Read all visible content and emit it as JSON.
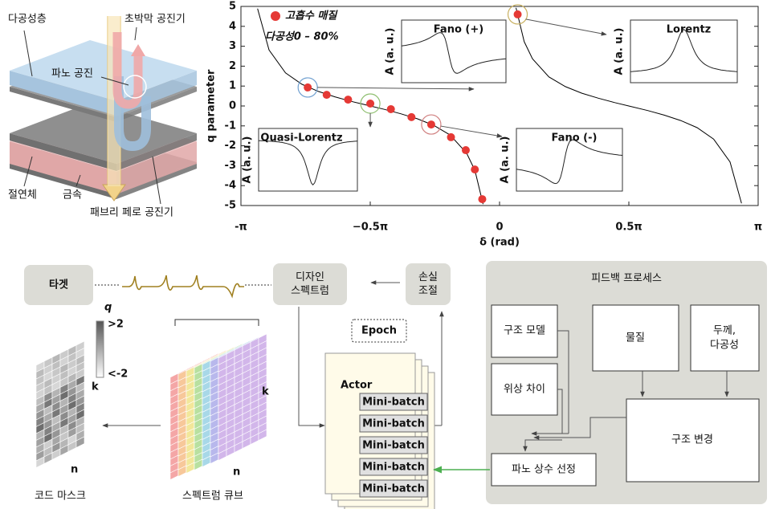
{
  "chart_data": {
    "type": "line",
    "xlabel": "δ (rad)",
    "ylabel": "q parameter",
    "xlim": [
      -3.1416,
      3.1416
    ],
    "ylim": [
      -5,
      5
    ],
    "xticks": [
      {
        "value": -3.1416,
        "label": "-π"
      },
      {
        "value": -1.5708,
        "label": "−0.5π"
      },
      0,
      {
        "value": 1.5708,
        "label": "0.5π"
      },
      {
        "value": 3.1416,
        "label": "π"
      }
    ],
    "yticks": [
      -5,
      -4,
      -3,
      -2,
      -1,
      0,
      1,
      2,
      3,
      4,
      5
    ],
    "series": [
      {
        "color": "#000000",
        "x": [
          -2.94,
          -2.8,
          -2.6,
          -2.4,
          -2.2,
          -2.0,
          -1.8,
          -1.57,
          -1.4,
          -1.2,
          -1.0,
          -0.8,
          -0.6,
          -0.4,
          -0.3,
          -0.2,
          null,
          0.2,
          0.3,
          0.4,
          0.6,
          0.8,
          1.0,
          1.2,
          1.4,
          1.57,
          1.8,
          2.0,
          2.2,
          2.4,
          2.6,
          2.8,
          2.94
        ],
        "values": [
          4.89,
          2.81,
          1.66,
          1.09,
          0.73,
          0.46,
          0.23,
          0.0,
          -0.17,
          -0.39,
          -0.64,
          -0.97,
          -1.46,
          -2.37,
          -3.23,
          -4.93,
          null,
          4.93,
          3.23,
          2.37,
          1.46,
          0.97,
          0.64,
          0.39,
          0.17,
          0.0,
          -0.23,
          -0.46,
          -0.73,
          -1.09,
          -1.66,
          -2.81,
          -4.89
        ]
      },
      {
        "name": "고흡수 매질",
        "type": "scatter",
        "color": "#e53935",
        "x": [
          -2.33,
          -2.1,
          -1.84,
          -1.57,
          -1.32,
          -1.07,
          -0.83,
          -0.59,
          -0.41,
          -0.3,
          -0.21,
          0.22
        ],
        "values": [
          0.93,
          0.56,
          0.32,
          0.12,
          -0.16,
          -0.56,
          -0.93,
          -1.57,
          -2.22,
          -3.19,
          -4.68,
          4.6
        ]
      }
    ],
    "annotations": [
      "다공성0 – 80%"
    ],
    "insets": [
      {
        "title": "Fano (+)",
        "ylabel": "A (a. u.)",
        "color": "#2e75b6"
      },
      {
        "title": "Lorentz",
        "ylabel": "A (a. u.)",
        "color": "#a08a1c"
      },
      {
        "title": "Quasi-Lorentz",
        "ylabel": "A (a. u.)",
        "color": "#4a7a2c"
      },
      {
        "title": "Fano (-)",
        "ylabel": "A (a. u.)",
        "color": "#d43a3a"
      }
    ]
  },
  "diagram": {
    "illustration": {
      "porous_layer": "다공성층",
      "fano_resonance": "파노 공진",
      "thin_film_resonator": "초박막 공진기",
      "insulator": "절연체",
      "metal": "금속",
      "fabry_perot_resonator": "패브리 페로 공진기"
    },
    "workflow": {
      "target": "타겟",
      "design_spectrum": [
        "디자인",
        "스펙트럼"
      ],
      "loss_control": [
        "손실",
        "조절"
      ],
      "epoch": "Epoch",
      "actor": "Actor",
      "mini_batches": [
        "Mini-batch",
        "Mini-batch",
        "Mini-batch",
        "Mini-batch",
        "Mini-batch"
      ],
      "feedback_title": "피드백 프로세스",
      "structure_model": "구조 모델",
      "material": "물질",
      "thickness_porosity": [
        "두께,",
        "다공성"
      ],
      "phase_difference": "위상 차이",
      "structure_change": "구조 변경",
      "fano_selection": "파노 상수 선정",
      "code_mask": "코드 마스크",
      "spectrum_cube": "스펙트럼 큐브",
      "colorbar": {
        "label": "q",
        "max": ">2",
        "min": "<-2"
      },
      "mask_axes": [
        "k",
        "n"
      ],
      "cube_axes": [
        "k",
        "n"
      ]
    }
  }
}
